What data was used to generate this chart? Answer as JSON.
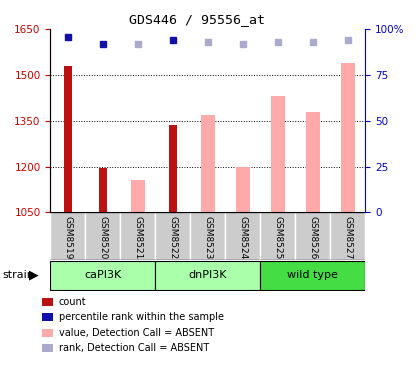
{
  "title": "GDS446 / 95556_at",
  "categories": [
    "GSM8519",
    "GSM8520",
    "GSM8521",
    "GSM8522",
    "GSM8523",
    "GSM8524",
    "GSM8525",
    "GSM8526",
    "GSM8527"
  ],
  "dark_red_bars": [
    1530,
    1195,
    null,
    1335,
    null,
    null,
    null,
    null,
    null
  ],
  "pink_bars": [
    null,
    null,
    1155,
    null,
    1370,
    1200,
    1430,
    1380,
    1540
  ],
  "dark_blue_squares": [
    96,
    92,
    null,
    94,
    null,
    null,
    null,
    null,
    null
  ],
  "light_blue_squares": [
    null,
    null,
    92,
    null,
    93,
    92,
    93,
    93,
    94
  ],
  "ylim_left": [
    1050,
    1650
  ],
  "ylim_right": [
    0,
    100
  ],
  "yticks_left": [
    1050,
    1200,
    1350,
    1500,
    1650
  ],
  "yticks_right": [
    0,
    25,
    50,
    75,
    100
  ],
  "left_tick_color": "#CC0000",
  "right_tick_color": "#0000CC",
  "dark_red": "#BB1111",
  "pink": "#FFAAAA",
  "dark_blue": "#1111AA",
  "light_blue": "#AAAACC",
  "group_light_green": "#AAFFAA",
  "group_dark_green": "#44DD44",
  "groups": [
    {
      "name": "caPI3K",
      "start": 0,
      "end": 2,
      "color": "#AAFFAA"
    },
    {
      "name": "dnPI3K",
      "start": 3,
      "end": 5,
      "color": "#AAFFAA"
    },
    {
      "name": "wild type",
      "start": 6,
      "end": 8,
      "color": "#44DD44"
    }
  ],
  "legend_items": [
    {
      "label": "count",
      "color": "#BB1111"
    },
    {
      "label": "percentile rank within the sample",
      "color": "#1111AA"
    },
    {
      "label": "value, Detection Call = ABSENT",
      "color": "#FFAAAA"
    },
    {
      "label": "rank, Detection Call = ABSENT",
      "color": "#AAAACC"
    }
  ],
  "bar_width": 0.4,
  "thin_bar_width": 0.22
}
